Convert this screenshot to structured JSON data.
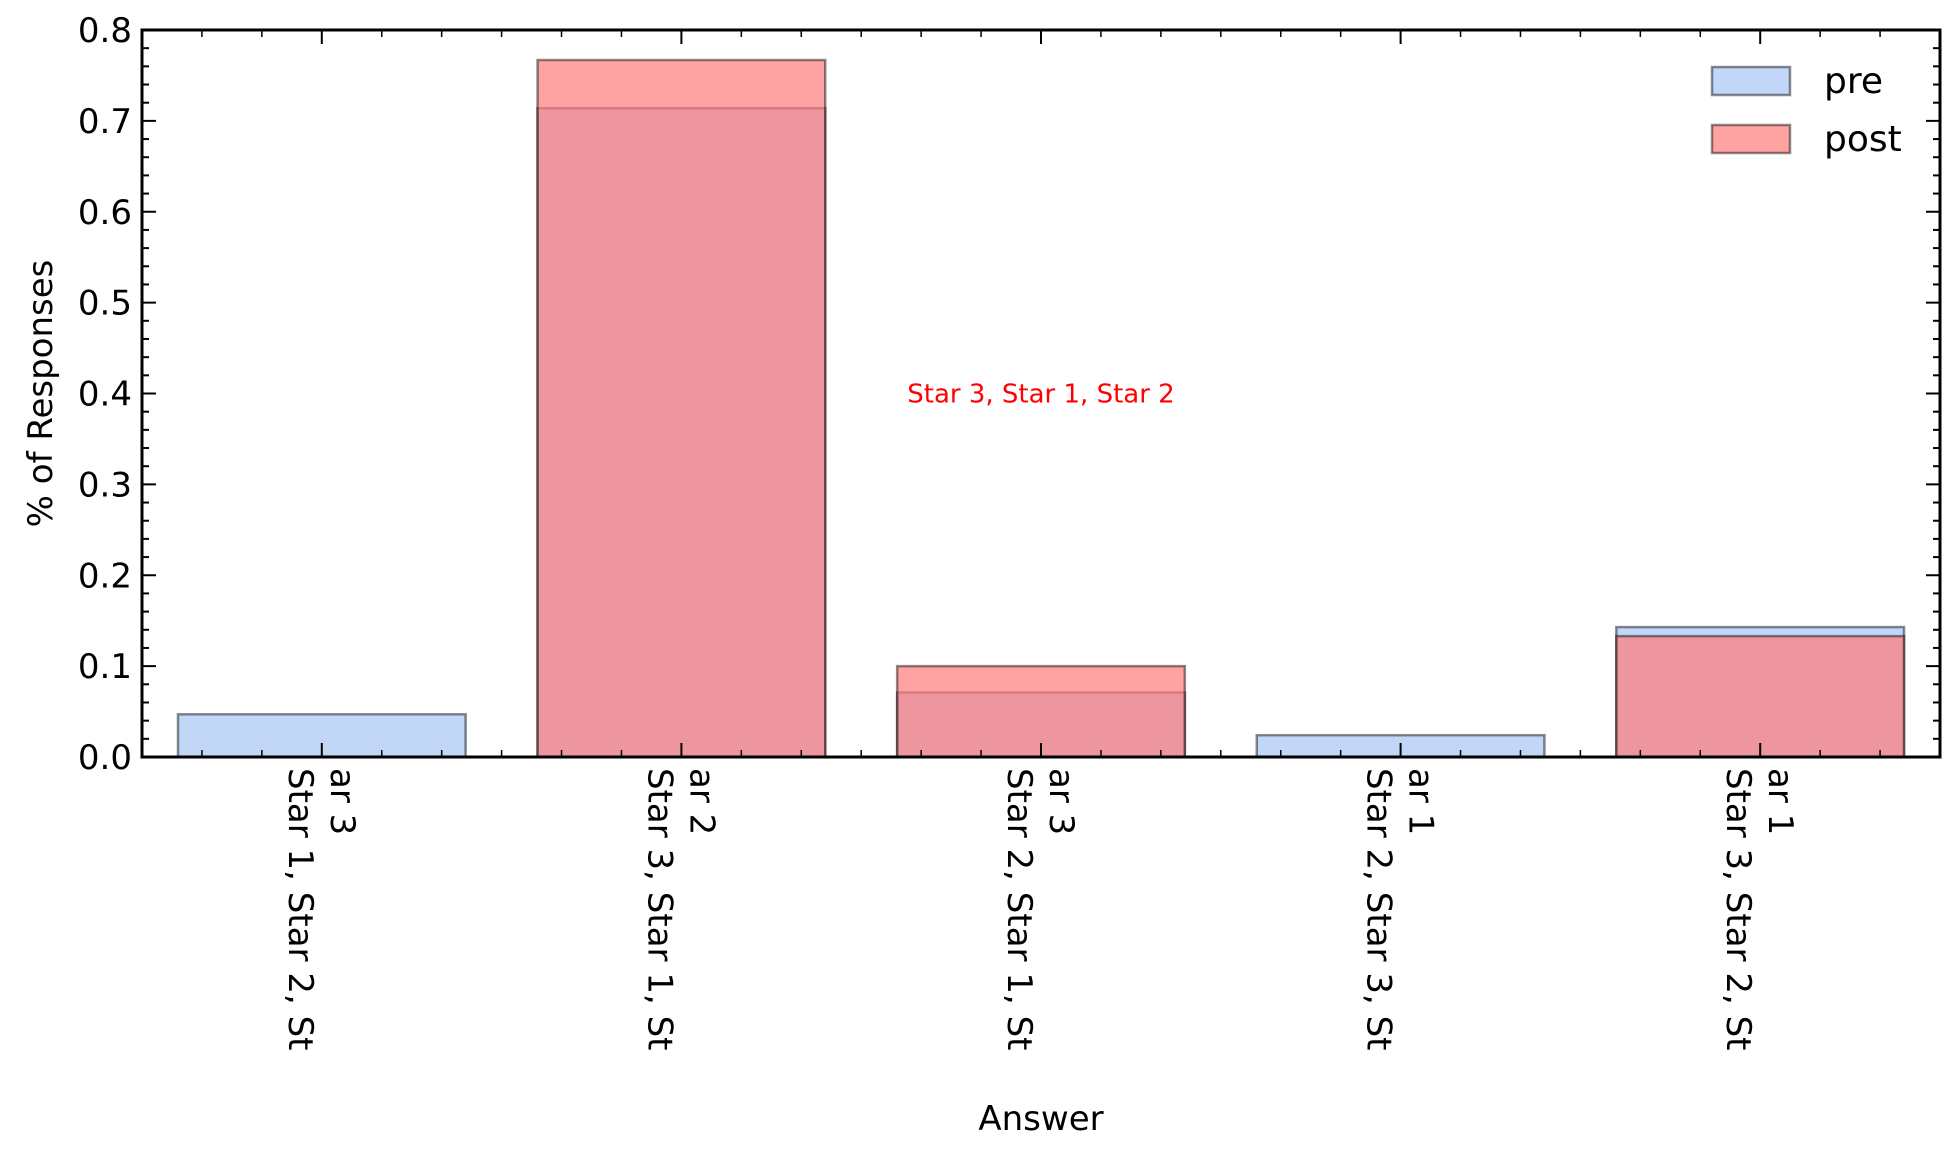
{
  "chart_data": {
    "type": "bar",
    "title": "",
    "xlabel": "Answer",
    "ylabel": "% of Responses",
    "ylim": [
      0,
      0.8
    ],
    "yticks": [
      "0.0",
      "0.1",
      "0.2",
      "0.3",
      "0.4",
      "0.5",
      "0.6",
      "0.7",
      "0.8"
    ],
    "categories": [
      [
        "Star 1, Star 2, St",
        "ar 3"
      ],
      [
        "Star 3, Star 1, St",
        "ar 2"
      ],
      [
        "Star 2, Star 1, St",
        "ar 3"
      ],
      [
        "Star 2, Star 3, St",
        "ar 1"
      ],
      [
        "Star 3, Star 2, St",
        "ar 1"
      ]
    ],
    "series": [
      {
        "name": "pre",
        "color": "#a8c4f5",
        "values": [
          0.047,
          0.714,
          0.071,
          0.024,
          0.143
        ]
      },
      {
        "name": "post",
        "color": "#ff7b7b",
        "values": [
          0.0,
          0.767,
          0.1,
          0.0,
          0.133
        ]
      }
    ],
    "legend": {
      "position": "top-right"
    },
    "annotation": {
      "text": "Star 3, Star 1, Star 2",
      "x": 2,
      "y": 0.4,
      "color": "#ff0000"
    },
    "grid": false
  }
}
